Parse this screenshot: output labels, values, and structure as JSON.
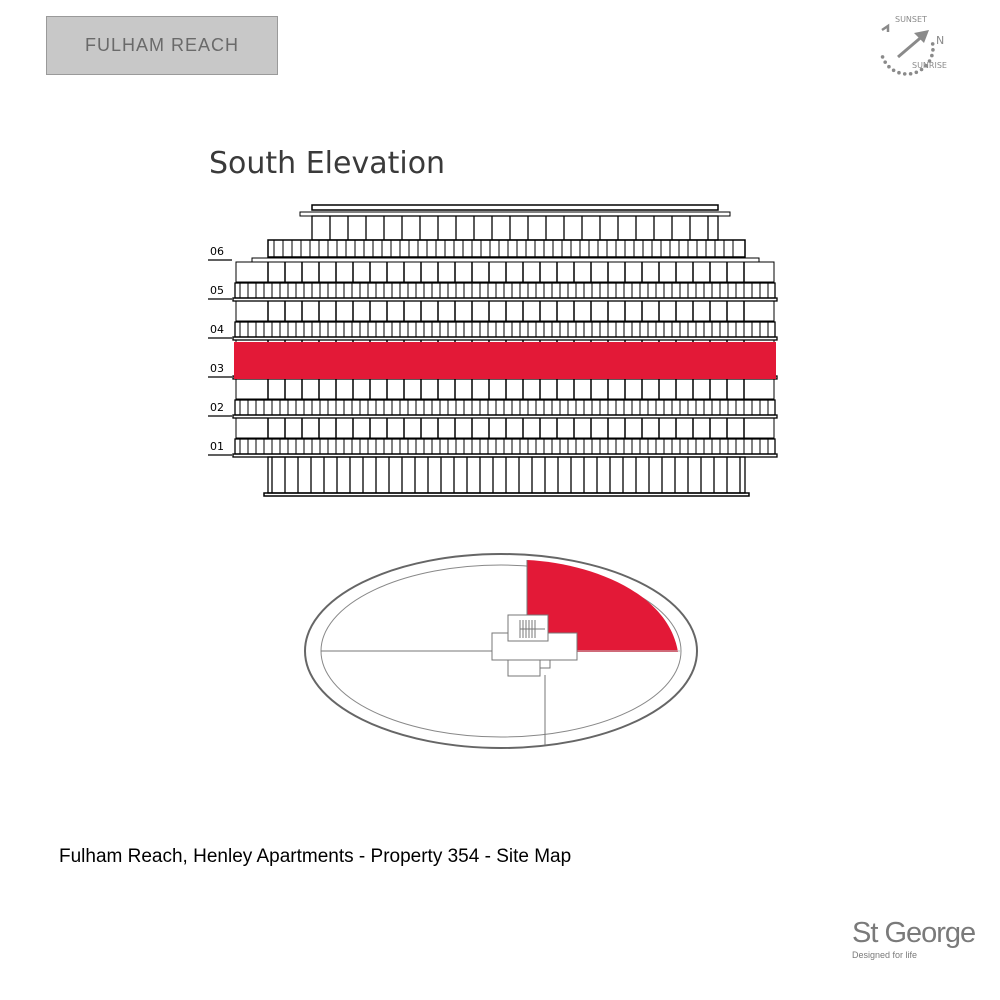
{
  "header": {
    "logo_text": "FULHAM REACH"
  },
  "compass": {
    "sunset": "SUNSET",
    "sunrise": "SUNRISE",
    "north": "N",
    "icon": "compass-arrow-icon"
  },
  "elevation": {
    "title": "South Elevation",
    "floors": [
      "06",
      "05",
      "04",
      "03",
      "02",
      "01"
    ],
    "highlighted_floor": "03"
  },
  "plan": {
    "highlighted_quadrant": "north-east"
  },
  "caption": "Fulham Reach, Henley Apartments - Property 354 - Site Map",
  "footer": {
    "brand": "St George",
    "tagline": "Designed for life"
  },
  "colors": {
    "highlight": "#e31937",
    "line": "#000000",
    "plan_line": "#666666"
  }
}
